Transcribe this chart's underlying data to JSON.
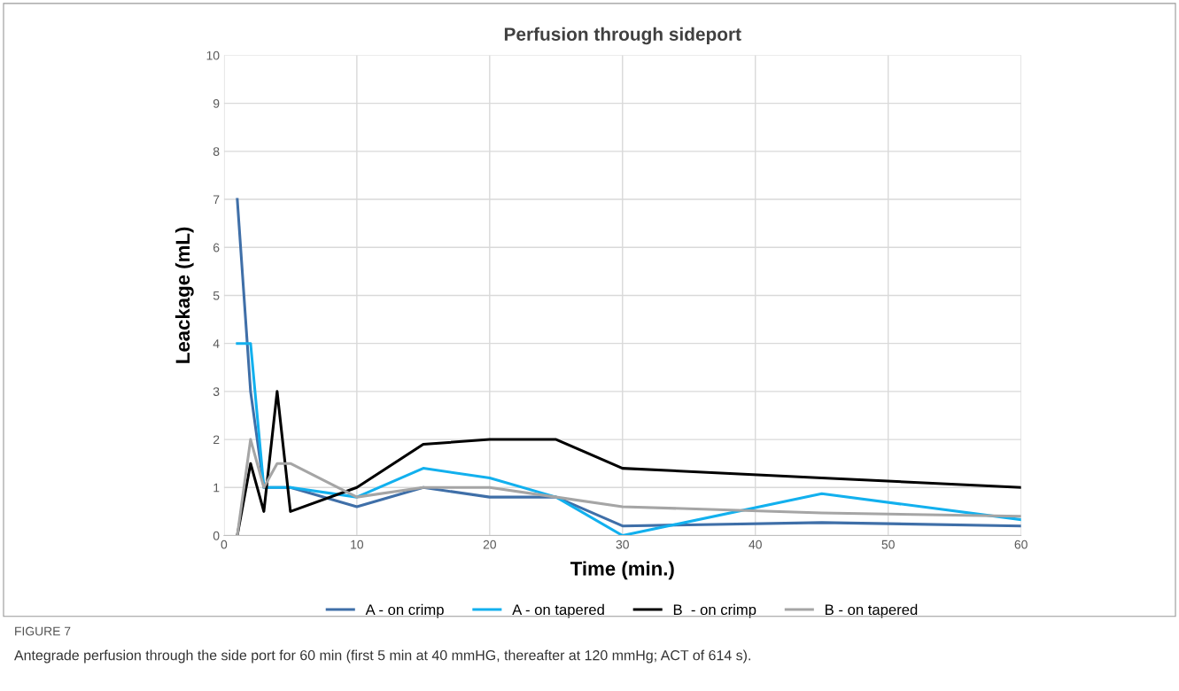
{
  "chart_data": {
    "type": "line",
    "title": "Perfusion through sideport",
    "xlabel": "Time (min.)",
    "ylabel": "Leackage (mL)",
    "x": [
      1,
      2,
      3,
      4,
      5,
      10,
      15,
      20,
      25,
      30,
      45,
      60
    ],
    "series": [
      {
        "name": "A - on crimp",
        "color": "#3f6fa8",
        "values": [
          7,
          3,
          1,
          1,
          1,
          0.6,
          1,
          0.8,
          0.8,
          0.2,
          0.27,
          0.2
        ]
      },
      {
        "name": "A - on tapered",
        "color": "#12b0ee",
        "values": [
          4,
          4,
          1,
          1,
          1,
          0.8,
          1.4,
          1.2,
          0.8,
          0,
          0.87,
          0.33
        ]
      },
      {
        "name": "B  - on crimp",
        "color": "#000000",
        "values": [
          0,
          1.5,
          0.5,
          3,
          0.5,
          1,
          1.9,
          2,
          2,
          1.4,
          1.2,
          1
        ]
      },
      {
        "name": "B - on tapered",
        "color": "#a5a5a5",
        "values": [
          0,
          2,
          1,
          1.5,
          1.5,
          0.8,
          1,
          1,
          0.8,
          0.6,
          0.47,
          0.4
        ]
      }
    ],
    "xlim": [
      0,
      60
    ],
    "xticks": [
      0,
      10,
      20,
      30,
      40,
      50,
      60
    ],
    "ylim": [
      0,
      10
    ],
    "yticks": [
      0,
      1,
      2,
      3,
      4,
      5,
      6,
      7,
      8,
      9,
      10
    ],
    "grid": true,
    "legend": "bottom",
    "marker": "none",
    "line_style": "solid",
    "annotations": [
      "FIGURE 7",
      "Antegrade perfusion through the side port for 60 min (first 5 min at 40 mmHG, thereafter at 120 mmHg; ACT of 614 s)."
    ]
  }
}
